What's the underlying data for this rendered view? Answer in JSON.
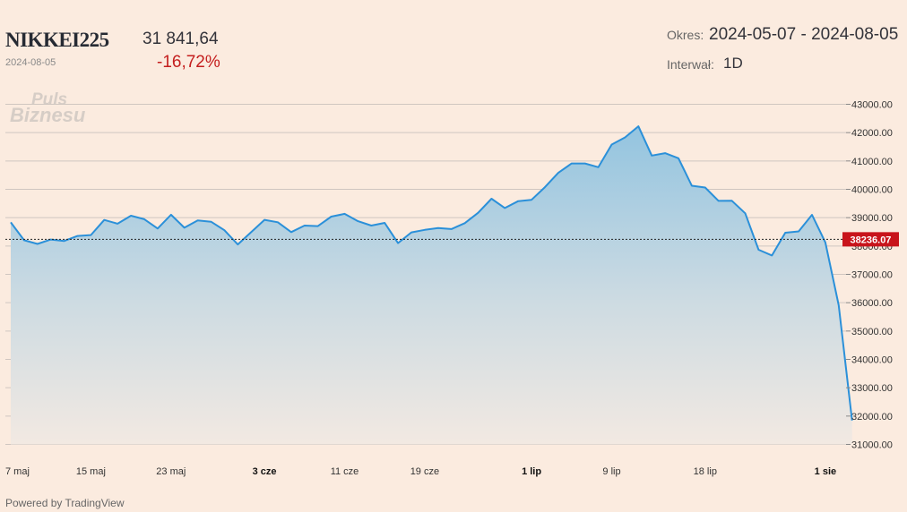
{
  "header": {
    "ticker": "NIKKEI225",
    "date": "2024-08-05",
    "price": "31 841,64",
    "change": "-16,72%",
    "period_label": "Okres:",
    "period_value": "2024-05-07 - 2024-08-05",
    "interval_label": "Interwał:",
    "interval_value": "1D"
  },
  "watermark": {
    "line1": "Puls",
    "line2": "Biznesu"
  },
  "footer": "Powered by TradingView",
  "colors": {
    "line": "#2b90d9",
    "price_tag": "#c8141b",
    "change_negative": "#c41e1e",
    "background": "#fbebdf"
  },
  "chart_data": {
    "type": "area",
    "ylim": [
      31000,
      43000
    ],
    "y_ticks": [
      "43000.00",
      "42000.00",
      "41000.00",
      "40000.00",
      "39000.00",
      "38000.00",
      "37000.00",
      "36000.00",
      "35000.00",
      "34000.00",
      "33000.00",
      "32000.00",
      "31000.00"
    ],
    "x_ticks": [
      {
        "label": "7 maj",
        "x": 0,
        "bold": false
      },
      {
        "label": "15 maj",
        "x": 6,
        "bold": false
      },
      {
        "label": "23 maj",
        "x": 12,
        "bold": false
      },
      {
        "label": "3 cze",
        "x": 19,
        "bold": true
      },
      {
        "label": "11 cze",
        "x": 25,
        "bold": false
      },
      {
        "label": "19 cze",
        "x": 31,
        "bold": false
      },
      {
        "label": "1 lip",
        "x": 39,
        "bold": true
      },
      {
        "label": "9 lip",
        "x": 45,
        "bold": false
      },
      {
        "label": "18 lip",
        "x": 52,
        "bold": false
      },
      {
        "label": "1 sie",
        "x": 61,
        "bold": true
      }
    ],
    "x_max": 62.2,
    "values": [
      38835,
      38202,
      38074,
      38229,
      38179,
      38356,
      38385,
      38921,
      38787,
      39069,
      38946,
      38617,
      39103,
      38646,
      38900,
      38856,
      38556,
      38054,
      38488,
      38923,
      38837,
      38490,
      38720,
      38703,
      39038,
      39134,
      38876,
      38720,
      38815,
      38102,
      38482,
      38571,
      38633,
      38597,
      38805,
      39174,
      39667,
      39341,
      39583,
      39631,
      40075,
      40581,
      40914,
      40913,
      40781,
      41580,
      41832,
      42224,
      41191,
      41275,
      41097,
      40127,
      40063,
      39594,
      39595,
      39154,
      37869,
      37667,
      38469,
      38515,
      39101,
      38126,
      35910,
      31842
    ],
    "reference_line": {
      "value": 38236.07,
      "label": "38236.07"
    }
  }
}
